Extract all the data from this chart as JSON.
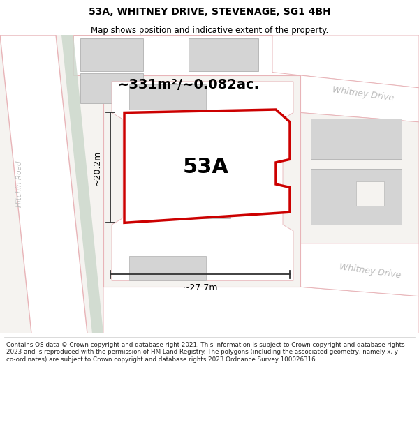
{
  "title": "53A, WHITNEY DRIVE, STEVENAGE, SG1 4BH",
  "subtitle": "Map shows position and indicative extent of the property.",
  "area_label": "~331m²/~0.082ac.",
  "property_label": "53A",
  "dim_width": "~27.7m",
  "dim_height": "~20.2m",
  "footer": "Contains OS data © Crown copyright and database right 2021. This information is subject to Crown copyright and database rights 2023 and is reproduced with the permission of HM Land Registry. The polygons (including the associated geometry, namely x, y co-ordinates) are subject to Crown copyright and database rights 2023 Ordnance Survey 100026316.",
  "map_bg": "#f5f3f0",
  "road_color": "#e8b4b8",
  "road_fill": "#ffffff",
  "green_color": "#ccd8cc",
  "property_color": "#cc0000",
  "building_fill": "#d4d4d4",
  "building_edge": "#b8b8b8",
  "road_label_color": "#bbbbbb",
  "dim_color": "#333333",
  "footer_color": "#222222",
  "title_size": 10,
  "subtitle_size": 8.5
}
